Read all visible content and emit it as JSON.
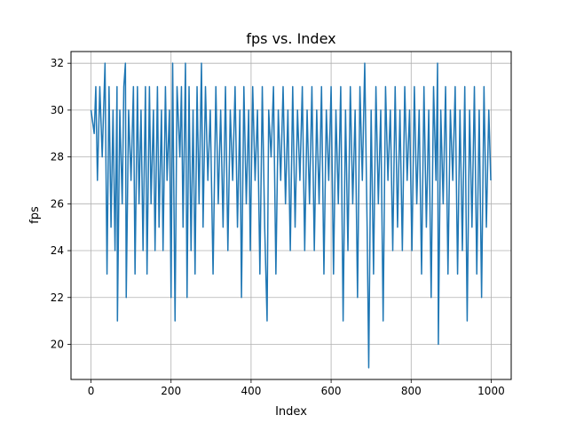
{
  "chart_data": {
    "type": "line",
    "title": "fps vs. Index",
    "xlabel": "Index",
    "ylabel": "fps",
    "xlim": [
      -50,
      1050
    ],
    "ylim": [
      18.5,
      32.5
    ],
    "xticks": [
      0,
      200,
      400,
      600,
      800,
      1000
    ],
    "yticks": [
      20,
      22,
      24,
      26,
      28,
      30,
      32
    ],
    "grid": true,
    "line_color": "#1f77b4",
    "series": [
      {
        "points": [
          [
            0,
            30
          ],
          [
            8,
            29
          ],
          [
            12,
            31
          ],
          [
            16,
            27
          ],
          [
            22,
            31
          ],
          [
            28,
            28
          ],
          [
            35,
            32
          ],
          [
            40,
            23
          ],
          [
            45,
            31
          ],
          [
            50,
            25
          ],
          [
            55,
            30
          ],
          [
            60,
            24
          ],
          [
            65,
            31
          ],
          [
            66,
            21
          ],
          [
            72,
            30
          ],
          [
            78,
            26
          ],
          [
            82,
            31
          ],
          [
            86,
            32
          ],
          [
            88,
            22
          ],
          [
            94,
            30
          ],
          [
            100,
            27
          ],
          [
            106,
            31
          ],
          [
            110,
            23
          ],
          [
            116,
            31
          ],
          [
            120,
            26
          ],
          [
            125,
            30
          ],
          [
            130,
            24
          ],
          [
            136,
            31
          ],
          [
            140,
            23
          ],
          [
            146,
            31
          ],
          [
            150,
            26
          ],
          [
            156,
            30
          ],
          [
            160,
            24
          ],
          [
            166,
            31
          ],
          [
            170,
            25
          ],
          [
            176,
            30
          ],
          [
            180,
            24
          ],
          [
            186,
            31
          ],
          [
            190,
            27
          ],
          [
            196,
            30
          ],
          [
            200,
            22
          ],
          [
            204,
            32
          ],
          [
            210,
            21
          ],
          [
            215,
            31
          ],
          [
            222,
            28
          ],
          [
            226,
            31
          ],
          [
            230,
            25
          ],
          [
            236,
            32
          ],
          [
            240,
            22
          ],
          [
            245,
            31
          ],
          [
            250,
            24
          ],
          [
            255,
            30
          ],
          [
            260,
            23
          ],
          [
            265,
            31
          ],
          [
            270,
            26
          ],
          [
            276,
            32
          ],
          [
            280,
            25
          ],
          [
            286,
            31
          ],
          [
            292,
            27
          ],
          [
            298,
            30
          ],
          [
            305,
            23
          ],
          [
            312,
            31
          ],
          [
            318,
            26
          ],
          [
            324,
            30
          ],
          [
            330,
            25
          ],
          [
            336,
            31
          ],
          [
            342,
            24
          ],
          [
            348,
            30
          ],
          [
            354,
            27
          ],
          [
            360,
            31
          ],
          [
            366,
            25
          ],
          [
            372,
            30
          ],
          [
            376,
            22
          ],
          [
            382,
            31
          ],
          [
            388,
            26
          ],
          [
            394,
            30
          ],
          [
            398,
            24
          ],
          [
            404,
            31
          ],
          [
            410,
            27
          ],
          [
            416,
            30
          ],
          [
            422,
            23
          ],
          [
            428,
            31
          ],
          [
            434,
            25
          ],
          [
            440,
            21
          ],
          [
            444,
            30
          ],
          [
            450,
            28
          ],
          [
            456,
            31
          ],
          [
            462,
            23
          ],
          [
            468,
            30
          ],
          [
            474,
            27
          ],
          [
            480,
            31
          ],
          [
            486,
            26
          ],
          [
            492,
            30
          ],
          [
            498,
            24
          ],
          [
            504,
            31
          ],
          [
            510,
            25
          ],
          [
            516,
            30
          ],
          [
            522,
            27
          ],
          [
            528,
            31
          ],
          [
            534,
            24
          ],
          [
            540,
            30
          ],
          [
            546,
            26
          ],
          [
            552,
            31
          ],
          [
            558,
            24
          ],
          [
            564,
            30
          ],
          [
            570,
            26
          ],
          [
            576,
            31
          ],
          [
            582,
            23
          ],
          [
            588,
            30
          ],
          [
            594,
            27
          ],
          [
            600,
            31
          ],
          [
            606,
            23
          ],
          [
            612,
            30
          ],
          [
            618,
            26
          ],
          [
            624,
            31
          ],
          [
            630,
            21
          ],
          [
            636,
            30
          ],
          [
            642,
            24
          ],
          [
            648,
            31
          ],
          [
            654,
            26
          ],
          [
            660,
            30
          ],
          [
            666,
            22
          ],
          [
            672,
            31
          ],
          [
            678,
            27
          ],
          [
            684,
            32
          ],
          [
            690,
            25
          ],
          [
            694,
            19
          ],
          [
            700,
            30
          ],
          [
            706,
            23
          ],
          [
            712,
            31
          ],
          [
            718,
            26
          ],
          [
            724,
            30
          ],
          [
            730,
            21
          ],
          [
            736,
            31
          ],
          [
            742,
            27
          ],
          [
            748,
            30
          ],
          [
            754,
            24
          ],
          [
            760,
            31
          ],
          [
            766,
            25
          ],
          [
            772,
            30
          ],
          [
            778,
            24
          ],
          [
            784,
            31
          ],
          [
            790,
            27
          ],
          [
            796,
            30
          ],
          [
            802,
            24
          ],
          [
            808,
            31
          ],
          [
            814,
            26
          ],
          [
            820,
            30
          ],
          [
            826,
            23
          ],
          [
            832,
            31
          ],
          [
            838,
            25
          ],
          [
            844,
            30
          ],
          [
            850,
            22
          ],
          [
            856,
            31
          ],
          [
            862,
            27
          ],
          [
            866,
            32
          ],
          [
            868,
            20
          ],
          [
            874,
            30
          ],
          [
            880,
            26
          ],
          [
            886,
            31
          ],
          [
            892,
            23
          ],
          [
            898,
            30
          ],
          [
            904,
            27
          ],
          [
            910,
            31
          ],
          [
            916,
            23
          ],
          [
            922,
            30
          ],
          [
            928,
            24
          ],
          [
            934,
            31
          ],
          [
            940,
            21
          ],
          [
            946,
            30
          ],
          [
            952,
            25
          ],
          [
            958,
            31
          ],
          [
            964,
            23
          ],
          [
            970,
            30
          ],
          [
            976,
            22
          ],
          [
            982,
            31
          ],
          [
            988,
            25
          ],
          [
            994,
            30
          ],
          [
            999,
            27
          ]
        ]
      }
    ]
  }
}
